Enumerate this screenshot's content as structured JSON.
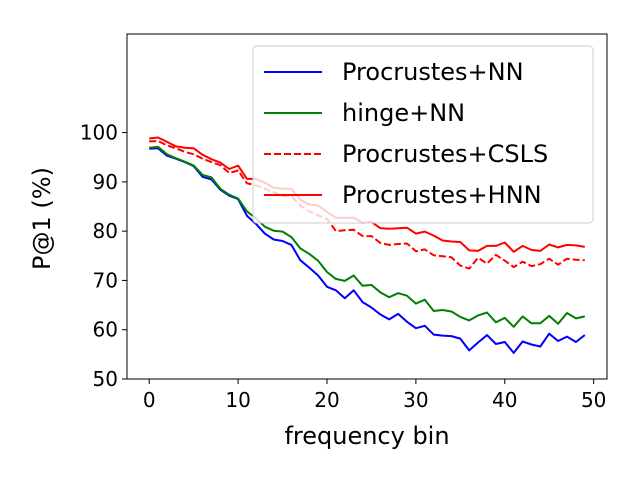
{
  "chart_data": {
    "type": "line",
    "xlabel": "frequency bin",
    "ylabel": "P@1 (%)",
    "xlim": [
      -2.5,
      51.5
    ],
    "ylim": [
      50,
      120
    ],
    "xticks": [
      0,
      10,
      20,
      30,
      40,
      50
    ],
    "yticks": [
      50,
      60,
      70,
      80,
      90,
      100
    ],
    "grid": false,
    "legend": "upper-right",
    "x": [
      0,
      1,
      2,
      3,
      4,
      5,
      6,
      7,
      8,
      9,
      10,
      11,
      12,
      13,
      14,
      15,
      16,
      17,
      18,
      19,
      20,
      21,
      22,
      23,
      24,
      25,
      26,
      27,
      28,
      29,
      30,
      31,
      32,
      33,
      34,
      35,
      36,
      37,
      38,
      39,
      40,
      41,
      42,
      43,
      44,
      45,
      46,
      47,
      48,
      49
    ],
    "series": [
      {
        "name": "Procrustes+NN",
        "color": "#0000ff",
        "dash": "solid",
        "values": [
          96.7,
          96.8,
          95.3,
          94.7,
          94.0,
          93.2,
          91.0,
          90.5,
          88.4,
          87.2,
          86.5,
          83.1,
          81.5,
          79.5,
          78.3,
          78.0,
          77.2,
          74.1,
          72.6,
          71.0,
          68.7,
          68.0,
          66.4,
          68.0,
          65.6,
          64.5,
          63.1,
          62.1,
          63.2,
          61.6,
          60.3,
          60.8,
          59.0,
          58.8,
          58.7,
          58.2,
          55.8,
          57.4,
          58.9,
          57.1,
          57.5,
          55.3,
          57.6,
          57.0,
          56.6,
          59.2,
          57.7,
          58.6,
          57.5,
          58.9
        ]
      },
      {
        "name": "hinge+NN",
        "color": "#008000",
        "dash": "solid",
        "values": [
          96.9,
          97.1,
          95.6,
          94.8,
          94.1,
          93.3,
          91.4,
          90.9,
          88.6,
          87.4,
          86.6,
          84.0,
          82.6,
          80.9,
          80.1,
          79.9,
          78.8,
          76.5,
          75.4,
          74.0,
          71.7,
          70.3,
          69.9,
          71.0,
          68.9,
          69.1,
          67.6,
          66.6,
          67.4,
          66.9,
          65.3,
          66.1,
          63.8,
          64.0,
          63.7,
          62.6,
          61.9,
          62.9,
          63.5,
          61.5,
          62.4,
          60.6,
          62.7,
          61.3,
          61.3,
          62.8,
          61.2,
          63.4,
          62.3,
          62.7
        ]
      },
      {
        "name": "Procrustes+CSLS",
        "color": "#ff0000",
        "dash": "dashed",
        "values": [
          98.2,
          98.3,
          97.4,
          96.8,
          96.1,
          95.6,
          94.7,
          94.0,
          93.4,
          91.8,
          92.3,
          89.7,
          89.3,
          88.6,
          87.9,
          87.1,
          87.1,
          85.2,
          84.0,
          83.2,
          82.5,
          80.0,
          80.2,
          80.3,
          79.0,
          79.0,
          77.6,
          77.2,
          77.4,
          77.5,
          75.9,
          76.3,
          75.1,
          74.9,
          74.7,
          73.0,
          72.4,
          74.6,
          73.4,
          75.2,
          74.0,
          72.7,
          73.8,
          72.9,
          73.3,
          74.4,
          73.2,
          74.4,
          74.2,
          74.1
        ]
      },
      {
        "name": "Procrustes+HNN",
        "color": "#ff0000",
        "dash": "solid",
        "values": [
          98.8,
          99.0,
          98.1,
          97.2,
          96.9,
          96.8,
          95.5,
          94.6,
          93.9,
          92.6,
          93.3,
          90.6,
          90.6,
          89.8,
          88.8,
          88.6,
          88.6,
          86.4,
          85.4,
          85.2,
          83.9,
          82.7,
          82.7,
          82.7,
          81.7,
          81.9,
          80.6,
          80.5,
          80.6,
          80.7,
          79.5,
          79.9,
          79.1,
          78.1,
          77.9,
          77.8,
          76.1,
          76.0,
          77.0,
          77.0,
          77.7,
          75.8,
          77.0,
          76.2,
          76.0,
          77.3,
          76.7,
          77.2,
          77.1,
          76.8
        ]
      }
    ]
  }
}
